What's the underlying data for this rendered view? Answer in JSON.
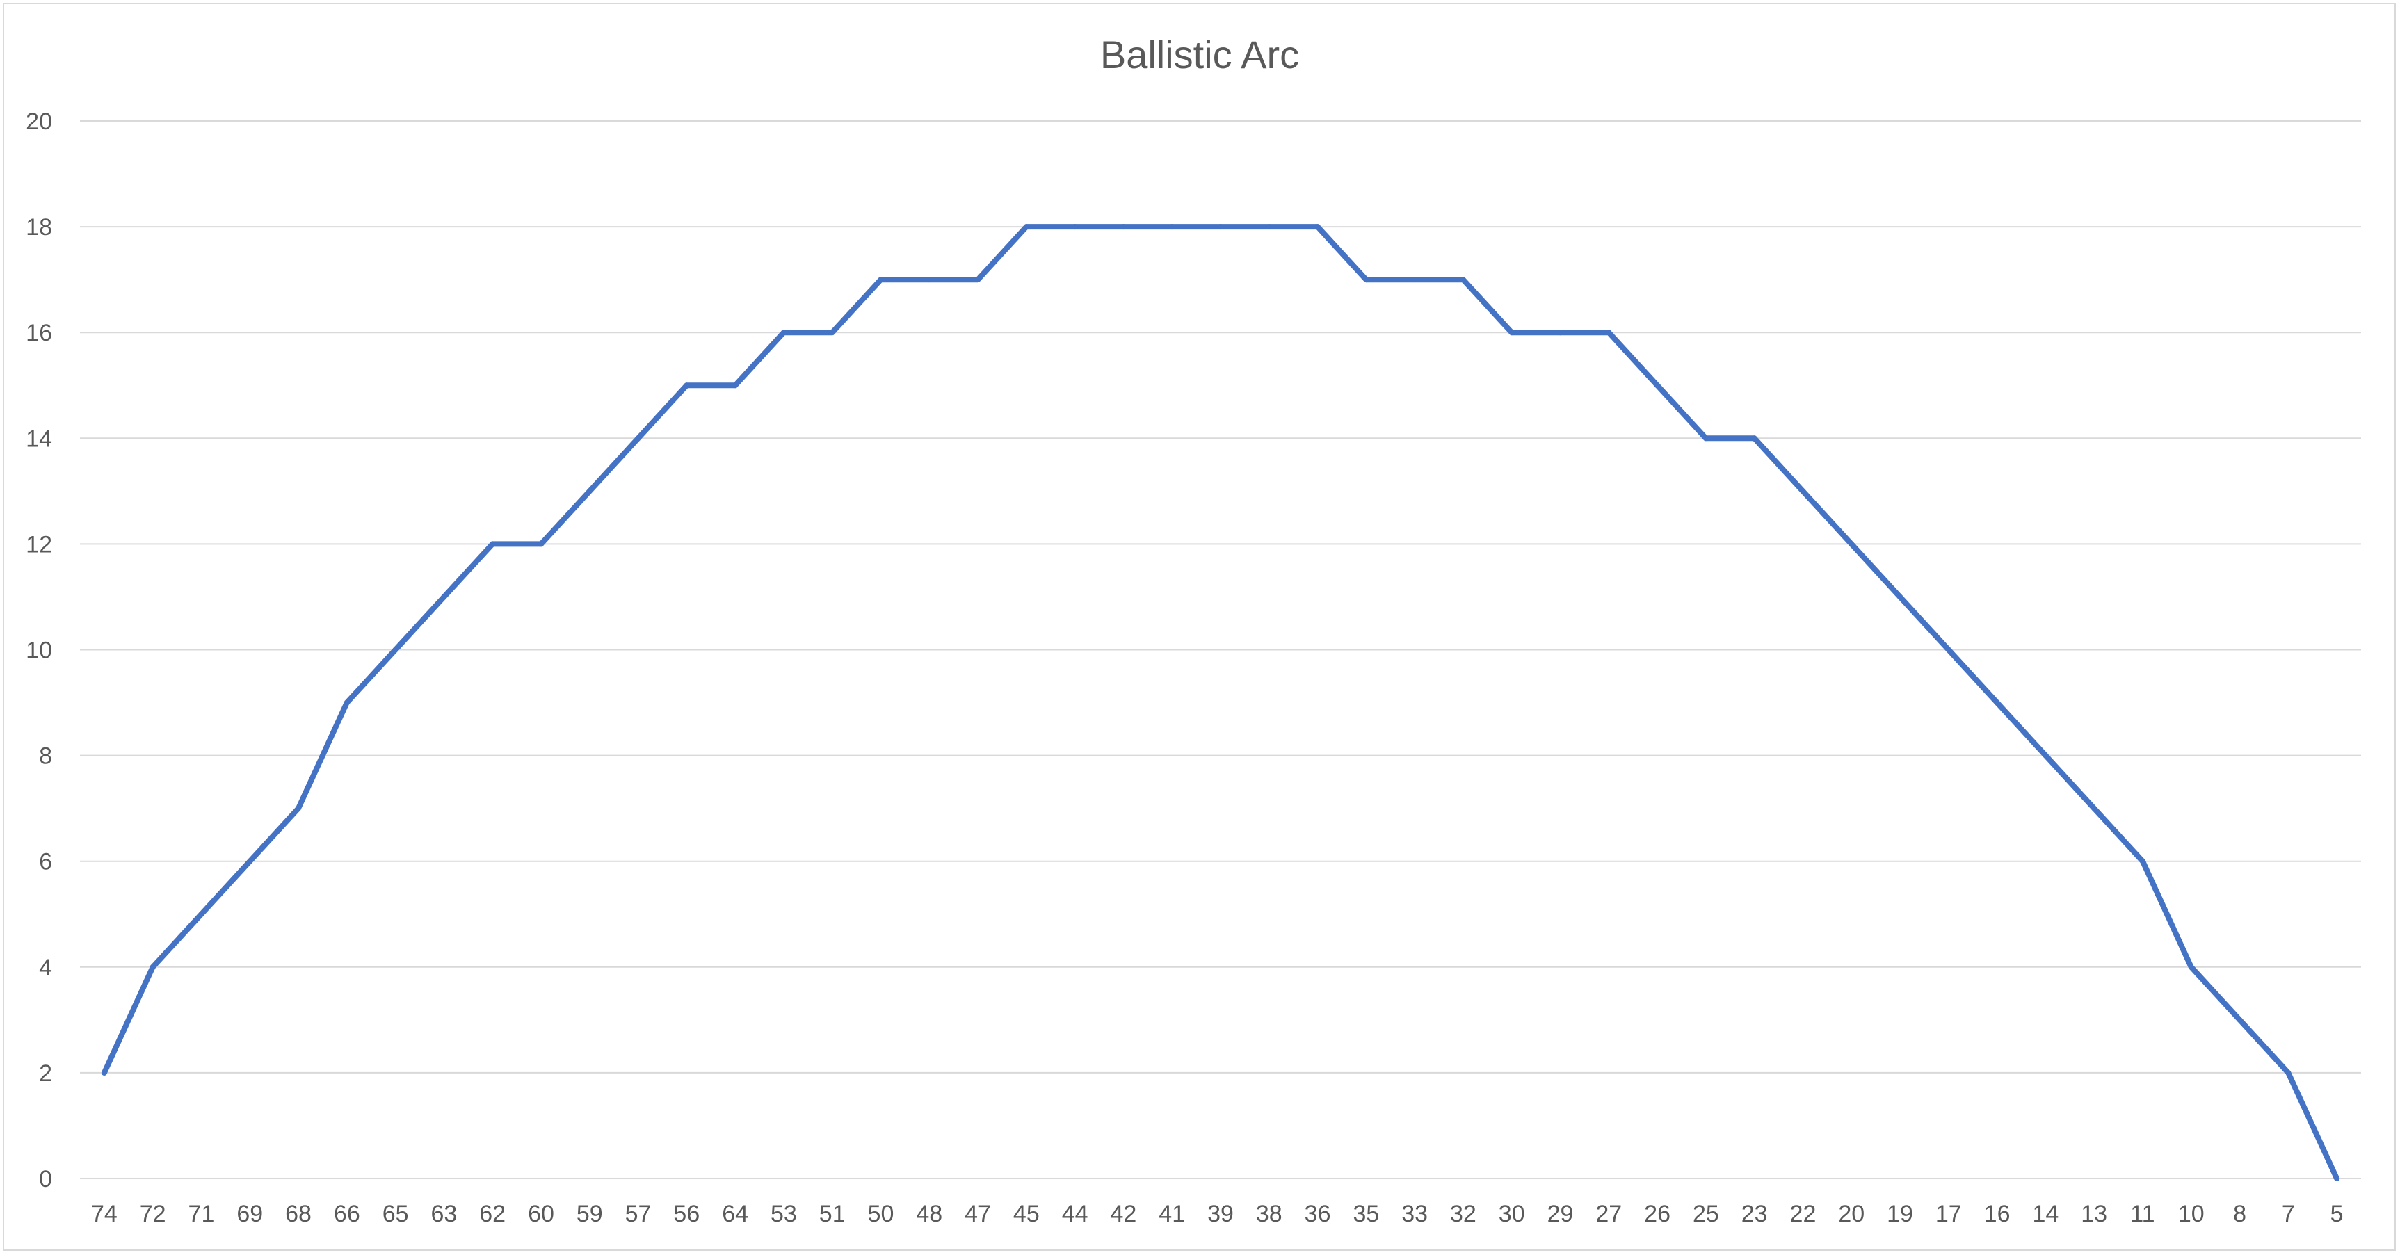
{
  "chart_data": {
    "type": "line",
    "title": "Ballistic Arc",
    "xlabel": "",
    "ylabel": "",
    "ylim": [
      0,
      20
    ],
    "yticks": [
      0,
      2,
      4,
      6,
      8,
      10,
      12,
      14,
      16,
      18,
      20
    ],
    "grid": true,
    "legend": "none",
    "line_color": "#4472c4",
    "categories": [
      "74",
      "72",
      "71",
      "69",
      "68",
      "66",
      "65",
      "63",
      "62",
      "60",
      "59",
      "57",
      "56",
      "64",
      "53",
      "51",
      "50",
      "48",
      "47",
      "45",
      "44",
      "42",
      "41",
      "39",
      "38",
      "36",
      "35",
      "33",
      "32",
      "30",
      "29",
      "27",
      "26",
      "25",
      "23",
      "22",
      "20",
      "19",
      "17",
      "16",
      "14",
      "13",
      "11",
      "10",
      "8",
      "7",
      "5"
    ],
    "series": [
      {
        "values": [
          2,
          4,
          5,
          6,
          7,
          9,
          10,
          11,
          12,
          12,
          13,
          14,
          15,
          15,
          16,
          16,
          17,
          17,
          17,
          18,
          18,
          18,
          18,
          18,
          18,
          18,
          17,
          17,
          17,
          16,
          16,
          16,
          15,
          14,
          14,
          13,
          12,
          11,
          10,
          9,
          8,
          7,
          6,
          4,
          3,
          2,
          0
        ]
      }
    ]
  }
}
